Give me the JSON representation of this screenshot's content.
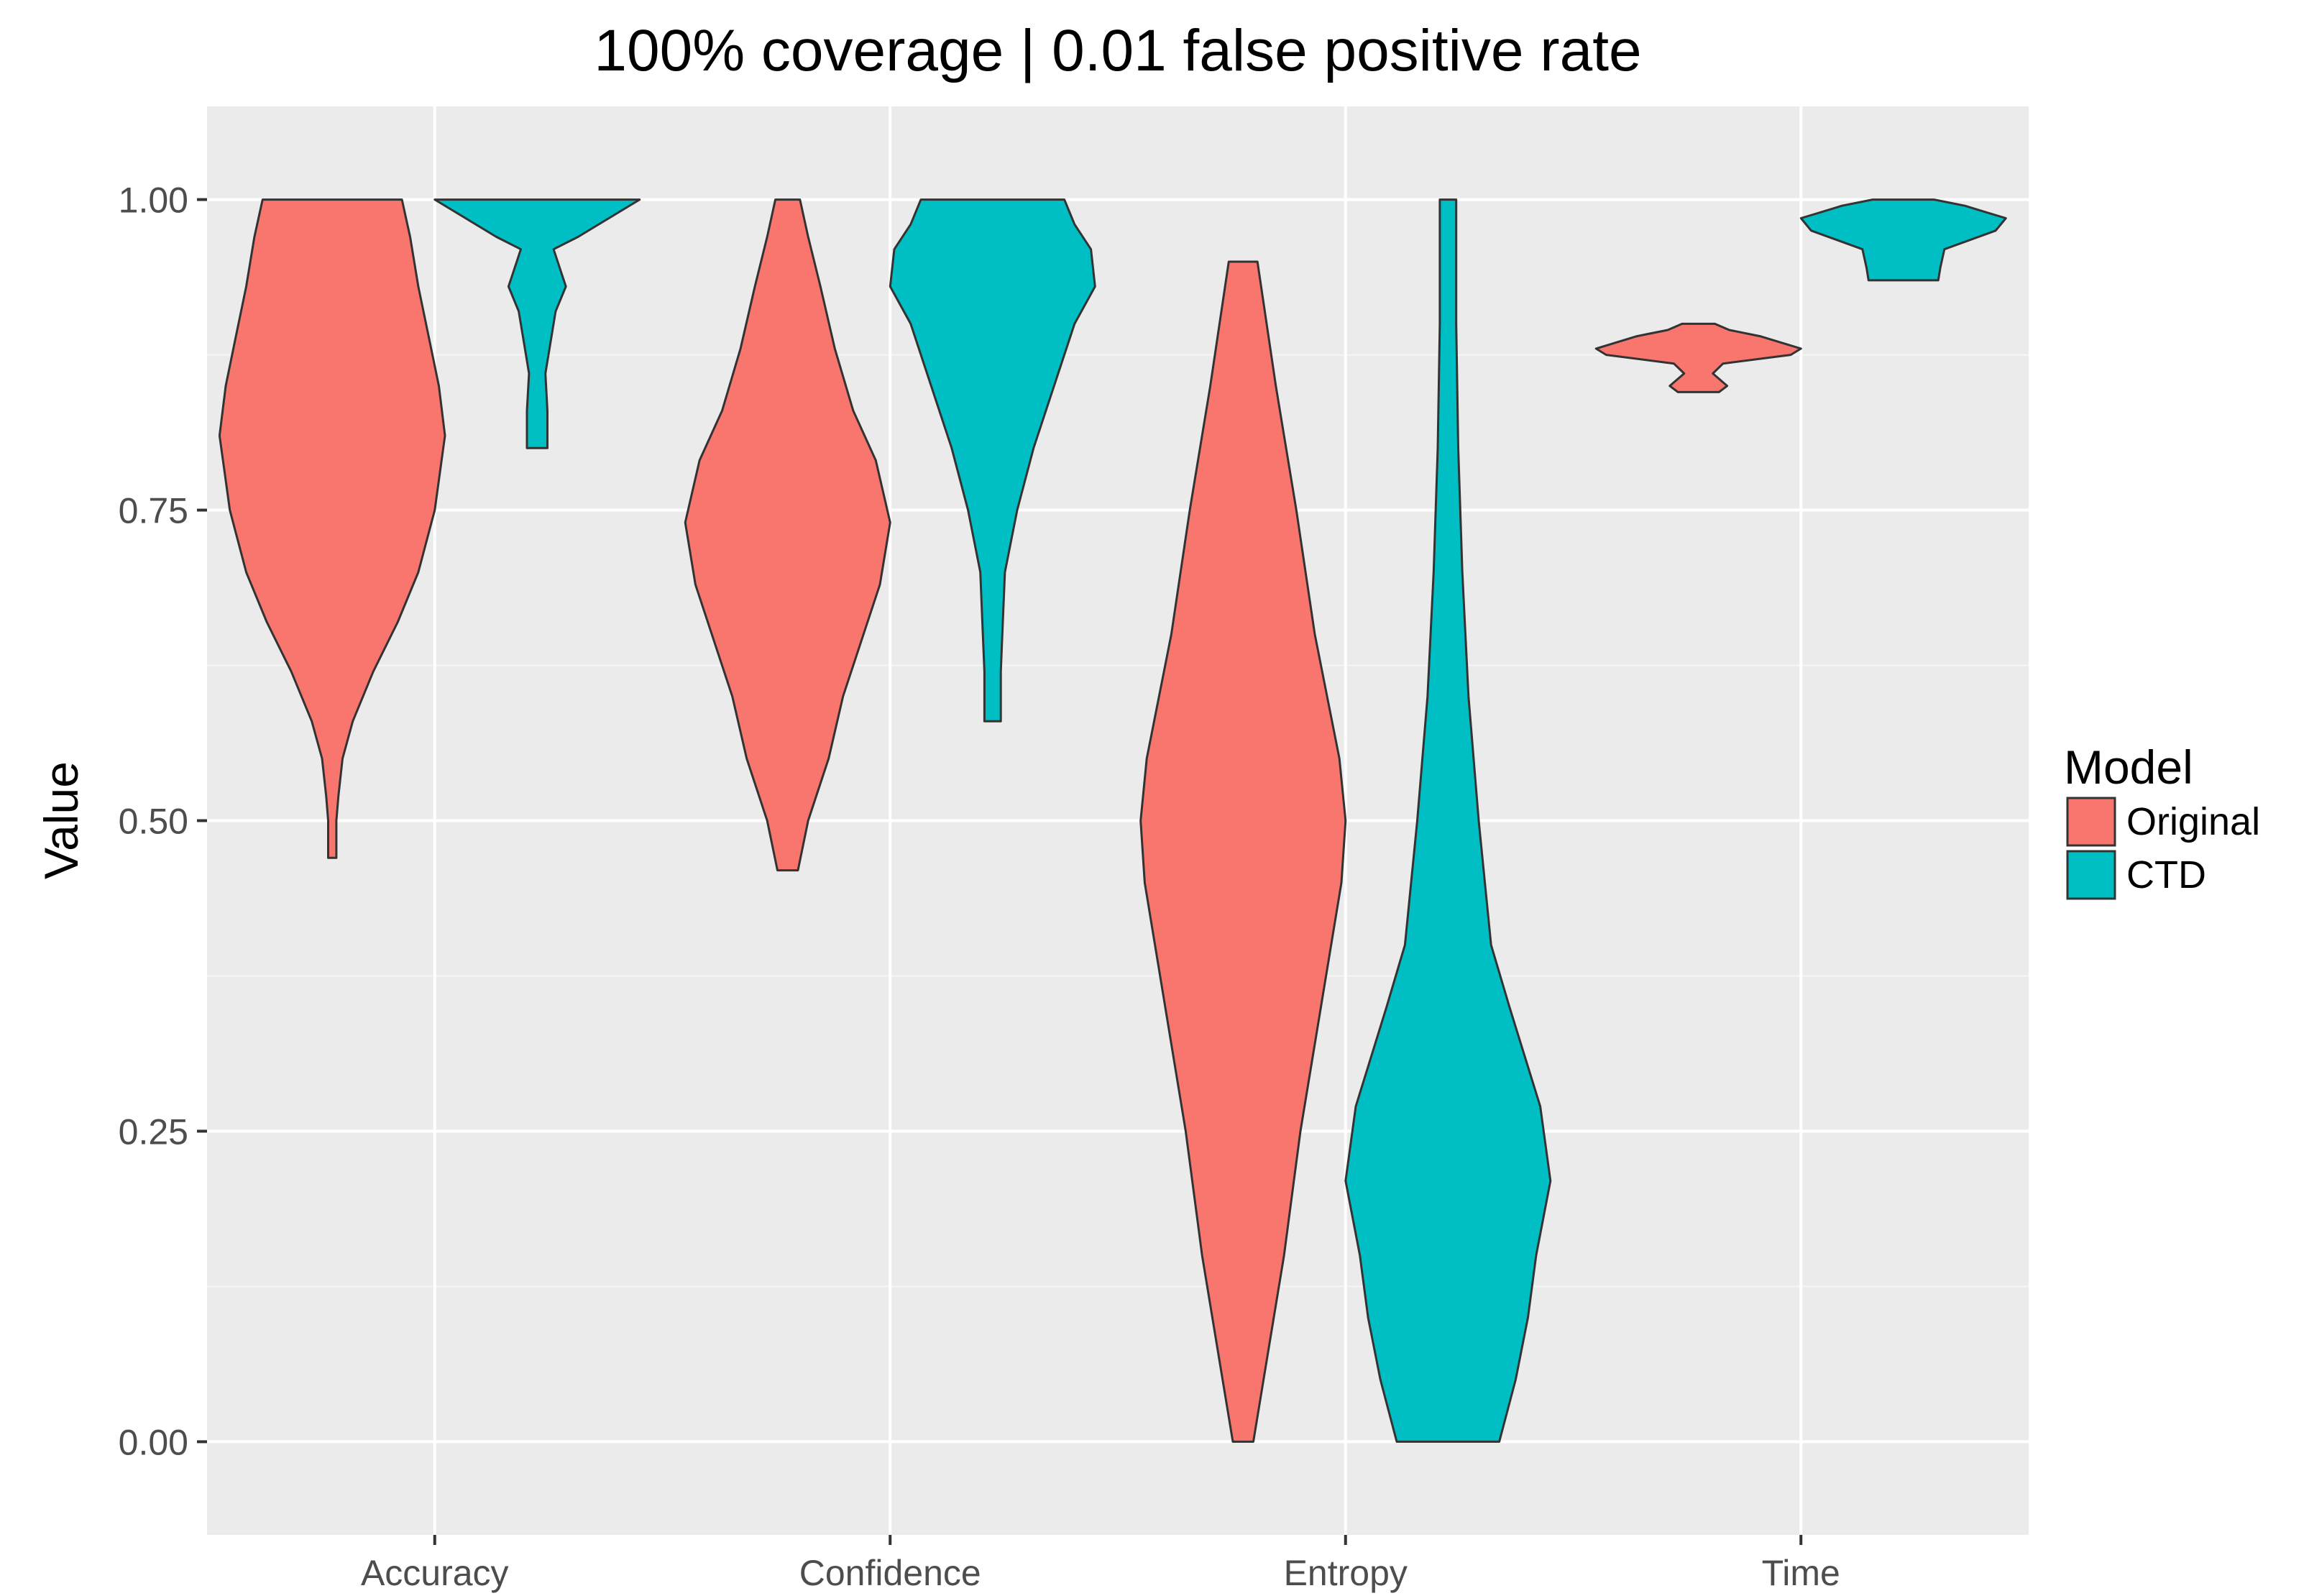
{
  "chart_data": {
    "type": "violin",
    "title": "100% coverage | 0.01 false positive rate",
    "xlabel": "",
    "ylabel": "Value",
    "ylim": [
      -0.075,
      1.075
    ],
    "yticks": [
      "0.00",
      "0.25",
      "0.50",
      "0.75",
      "1.00"
    ],
    "grid": true,
    "legend_position": "right",
    "categories": [
      "Accuracy",
      "Confidence",
      "Entropy",
      "Time"
    ],
    "legend": {
      "title": "Model",
      "items": [
        {
          "label": "Original",
          "color": "#F8766D"
        },
        {
          "label": "CTD",
          "color": "#00BFC4"
        }
      ]
    },
    "series": [
      {
        "name": "Original",
        "color": "#F8766D",
        "violins": [
          {
            "category": "Accuracy",
            "profile": [
              [
                0.47,
                0.02
              ],
              [
                0.5,
                0.02
              ],
              [
                0.52,
                0.03
              ],
              [
                0.55,
                0.05
              ],
              [
                0.58,
                0.1
              ],
              [
                0.62,
                0.2
              ],
              [
                0.66,
                0.32
              ],
              [
                0.7,
                0.42
              ],
              [
                0.75,
                0.5
              ],
              [
                0.81,
                0.55
              ],
              [
                0.85,
                0.52
              ],
              [
                0.89,
                0.47
              ],
              [
                0.93,
                0.42
              ],
              [
                0.97,
                0.38
              ],
              [
                1.0,
                0.34
              ]
            ]
          },
          {
            "category": "Confidence",
            "profile": [
              [
                0.46,
                0.05
              ],
              [
                0.5,
                0.1
              ],
              [
                0.55,
                0.2
              ],
              [
                0.6,
                0.27
              ],
              [
                0.65,
                0.37
              ],
              [
                0.69,
                0.45
              ],
              [
                0.74,
                0.5
              ],
              [
                0.79,
                0.43
              ],
              [
                0.83,
                0.32
              ],
              [
                0.88,
                0.23
              ],
              [
                0.93,
                0.16
              ],
              [
                0.97,
                0.1
              ],
              [
                1.0,
                0.06
              ]
            ]
          },
          {
            "category": "Entropy",
            "profile": [
              [
                0.0,
                0.05
              ],
              [
                0.05,
                0.1
              ],
              [
                0.15,
                0.2
              ],
              [
                0.25,
                0.28
              ],
              [
                0.35,
                0.38
              ],
              [
                0.45,
                0.48
              ],
              [
                0.5,
                0.5
              ],
              [
                0.55,
                0.47
              ],
              [
                0.65,
                0.35
              ],
              [
                0.75,
                0.26
              ],
              [
                0.85,
                0.16
              ],
              [
                0.95,
                0.07
              ]
            ]
          },
          {
            "category": "Time",
            "profile": [
              [
                0.845,
                0.1
              ],
              [
                0.85,
                0.14
              ],
              [
                0.86,
                0.07
              ],
              [
                0.868,
                0.12
              ],
              [
                0.875,
                0.45
              ],
              [
                0.88,
                0.5
              ],
              [
                0.89,
                0.3
              ],
              [
                0.895,
                0.15
              ],
              [
                0.9,
                0.08
              ]
            ]
          }
        ]
      },
      {
        "name": "CTD",
        "color": "#00BFC4",
        "violins": [
          {
            "category": "Accuracy",
            "profile": [
              [
                0.8,
                0.05
              ],
              [
                0.83,
                0.05
              ],
              [
                0.86,
                0.04
              ],
              [
                0.88,
                0.06
              ],
              [
                0.91,
                0.09
              ],
              [
                0.93,
                0.14
              ],
              [
                0.94,
                0.12
              ],
              [
                0.96,
                0.08
              ],
              [
                0.97,
                0.2
              ],
              [
                0.99,
                0.4
              ],
              [
                1.0,
                0.5
              ]
            ]
          },
          {
            "category": "Confidence",
            "profile": [
              [
                0.58,
                0.04
              ],
              [
                0.62,
                0.04
              ],
              [
                0.66,
                0.05
              ],
              [
                0.7,
                0.06
              ],
              [
                0.75,
                0.12
              ],
              [
                0.8,
                0.2
              ],
              [
                0.85,
                0.3
              ],
              [
                0.9,
                0.4
              ],
              [
                0.93,
                0.5
              ],
              [
                0.96,
                0.48
              ],
              [
                0.98,
                0.4
              ],
              [
                1.0,
                0.35
              ]
            ]
          },
          {
            "category": "Entropy",
            "profile": [
              [
                0.0,
                0.25
              ],
              [
                0.05,
                0.33
              ],
              [
                0.1,
                0.39
              ],
              [
                0.15,
                0.43
              ],
              [
                0.21,
                0.5
              ],
              [
                0.27,
                0.45
              ],
              [
                0.35,
                0.3
              ],
              [
                0.4,
                0.21
              ],
              [
                0.5,
                0.15
              ],
              [
                0.6,
                0.1
              ],
              [
                0.7,
                0.07
              ],
              [
                0.8,
                0.05
              ],
              [
                0.9,
                0.04
              ],
              [
                1.0,
                0.04
              ]
            ]
          },
          {
            "category": "Time",
            "profile": [
              [
                0.935,
                0.17
              ],
              [
                0.945,
                0.18
              ],
              [
                0.96,
                0.2
              ],
              [
                0.975,
                0.45
              ],
              [
                0.985,
                0.5
              ],
              [
                0.99,
                0.4
              ],
              [
                0.995,
                0.3
              ],
              [
                1.0,
                0.15
              ]
            ]
          }
        ]
      }
    ]
  }
}
